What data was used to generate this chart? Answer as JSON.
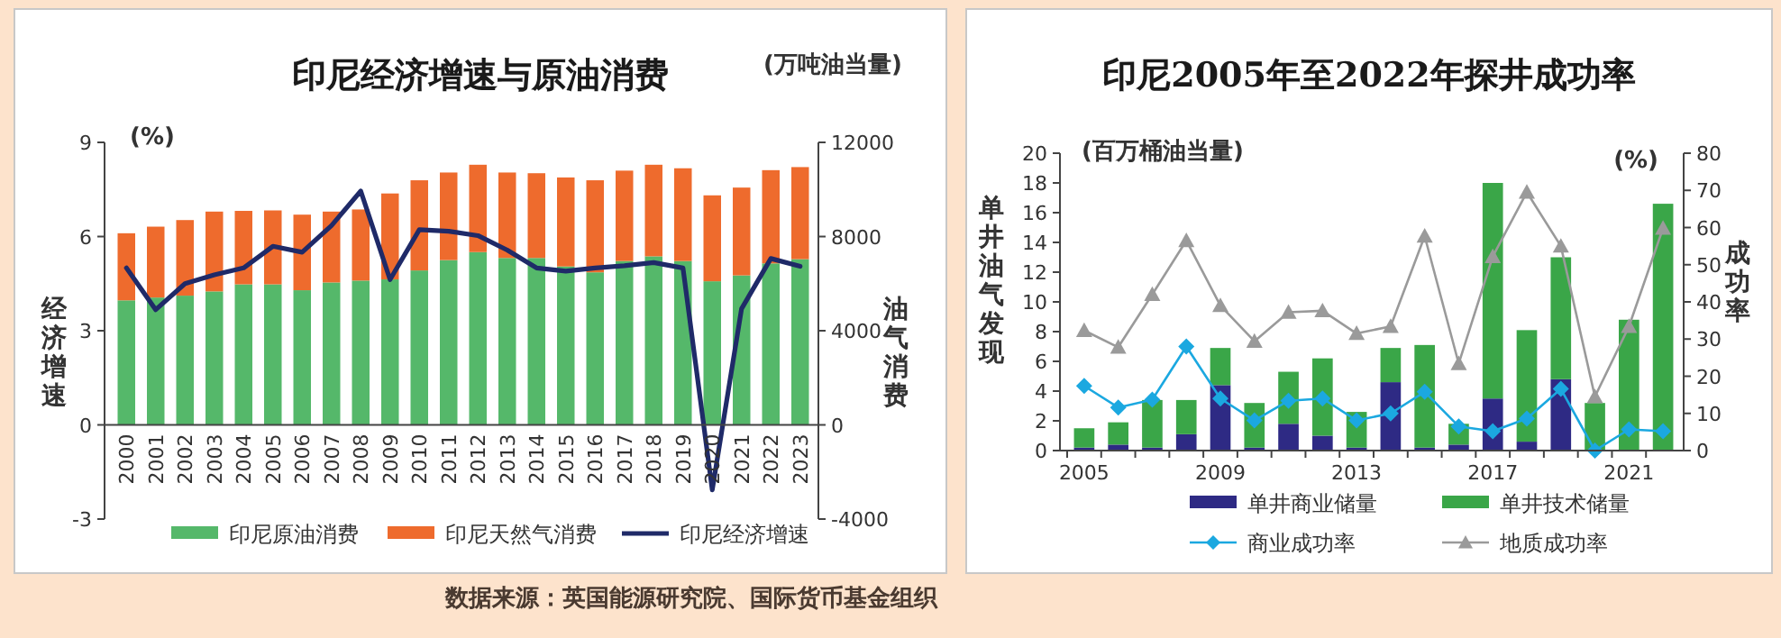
{
  "chart_data": [
    {
      "type": "bar",
      "title": "印尼经济增速与原油消费",
      "ylabel": "经济增速",
      "y2label": "油气消费",
      "annotations": [
        "(%)",
        "(万吨油当量)",
        "数据来源：英国能源研究院、国际货币基金组织"
      ],
      "categories": [
        "2000",
        "2001",
        "2002",
        "2003",
        "2004",
        "2005",
        "2006",
        "2007",
        "2008",
        "2009",
        "2010",
        "2011",
        "2012",
        "2013",
        "2014",
        "2015",
        "2016",
        "2017",
        "2018",
        "2019",
        "2020",
        "2021",
        "2022",
        "2023"
      ],
      "stacked": true,
      "legend": "bottom",
      "grid": false,
      "ylim": [
        -3,
        9
      ],
      "yticks": [
        -3,
        0,
        3,
        6,
        9
      ],
      "y2lim": [
        -4000,
        12000
      ],
      "y2ticks": [
        -4000,
        0,
        4000,
        8000,
        12000
      ],
      "series": [
        {
          "name": "印尼原油消费",
          "axis": "y2",
          "color": "#55b86a",
          "values": [
            5290,
            5410,
            5490,
            5670,
            5970,
            5970,
            5720,
            6050,
            6130,
            6180,
            6560,
            7000,
            7340,
            7090,
            7090,
            6730,
            6480,
            6960,
            7160,
            6960,
            6100,
            6350,
            6860,
            7040
          ]
        },
        {
          "name": "印尼天然气消费",
          "axis": "y2",
          "color": "#ee6b2d",
          "values": [
            2850,
            3010,
            3210,
            3390,
            3120,
            3140,
            3210,
            3010,
            3020,
            3650,
            3830,
            3720,
            3710,
            3630,
            3600,
            3780,
            3910,
            3840,
            3890,
            3940,
            3650,
            3730,
            3960,
            3910
          ]
        },
        {
          "name": "印尼经济增速",
          "type": "line",
          "axis": "y",
          "color": "#1f2a68",
          "marker": "none",
          "values": [
            5.0,
            3.67,
            4.5,
            4.78,
            5.0,
            5.69,
            5.5,
            6.35,
            7.45,
            4.63,
            6.22,
            6.17,
            6.03,
            5.57,
            5.0,
            4.9,
            5.0,
            5.07,
            5.17,
            5.0,
            -2.07,
            3.7,
            5.3,
            5.05
          ]
        }
      ]
    },
    {
      "type": "bar",
      "title": "印尼2005年至2022年探井成功率",
      "ylabel": "单井油气发现",
      "y2label": "成功率",
      "annotations": [
        "(百万桶油当量)",
        "(%)"
      ],
      "categories": [
        "2005",
        null,
        null,
        null,
        "2009",
        null,
        null,
        null,
        "2013",
        null,
        null,
        null,
        "2017",
        null,
        null,
        null,
        "2021",
        null
      ],
      "stacked": true,
      "legend": "bottom",
      "grid": false,
      "ylim": [
        0,
        20
      ],
      "yticks": [
        0,
        2,
        4,
        6,
        8,
        10,
        12,
        14,
        16,
        18,
        20
      ],
      "y2lim": [
        0,
        80
      ],
      "y2ticks": [
        0,
        10,
        20,
        30,
        40,
        50,
        60,
        70,
        80
      ],
      "series": [
        {
          "name": "单井商业储量",
          "axis": "y",
          "color": "#2e2a84",
          "values": [
            0.2,
            0.4,
            0.2,
            1.1,
            4.4,
            0.2,
            1.8,
            1.0,
            0.2,
            4.6,
            0.2,
            0.4,
            3.5,
            0.6,
            4.8,
            0,
            0,
            0
          ]
        },
        {
          "name": "单井技术储量",
          "axis": "y",
          "color": "#3aa648",
          "values": [
            1.3,
            1.5,
            3.2,
            2.3,
            2.5,
            3.0,
            3.5,
            5.2,
            2.4,
            2.3,
            6.9,
            1.4,
            14.5,
            7.5,
            8.2,
            3.2,
            8.8,
            16.6
          ]
        },
        {
          "name": "商业成功率",
          "type": "line",
          "axis": "y2",
          "color": "#1ba8e0",
          "marker": "diamond",
          "values": [
            17.4,
            11.6,
            13.7,
            28,
            14,
            8.1,
            13.4,
            14,
            8.1,
            10,
            15.8,
            6.5,
            5.2,
            8.6,
            16.6,
            0,
            5.7,
            5.2
          ]
        },
        {
          "name": "地质成功率",
          "type": "line",
          "axis": "y2",
          "color": "#9a9a9a",
          "marker": "triangle",
          "values": [
            32.3,
            27.8,
            42,
            56.5,
            39,
            29.4,
            37.2,
            37.6,
            31.5,
            33.4,
            57.7,
            23.4,
            52.2,
            69.5,
            55,
            14.5,
            33.4,
            59.8
          ]
        }
      ]
    }
  ]
}
